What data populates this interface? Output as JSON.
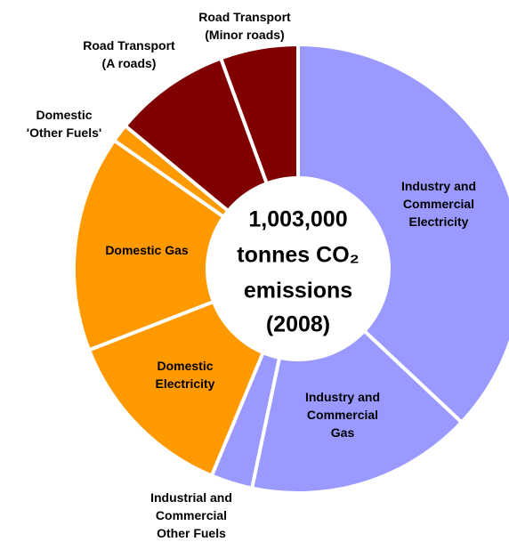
{
  "chart_data": {
    "type": "donut",
    "categories": [
      "Industry and\nCommercial\nElectricity",
      "Industry and\nCommercial\nGas",
      "Industrial and\nCommercial\nOther Fuels",
      "Domestic\nElectricity",
      "Domestic Gas",
      "Domestic\n'Other Fuels'",
      "Road Transport\n(A roads)",
      "Road Transport\n(Minor roads)"
    ],
    "values": [
      37,
      16.3,
      3,
      12.8,
      15.6,
      1.3,
      8.4,
      5.6
    ],
    "colors": [
      "#9999ff",
      "#9999ff",
      "#9999ff",
      "#ff9900",
      "#ff9900",
      "#ff9900",
      "#800000",
      "#800000"
    ],
    "center_text": [
      "1,003,000",
      "tonnes CO₂",
      "emissions",
      "(2008)"
    ]
  }
}
